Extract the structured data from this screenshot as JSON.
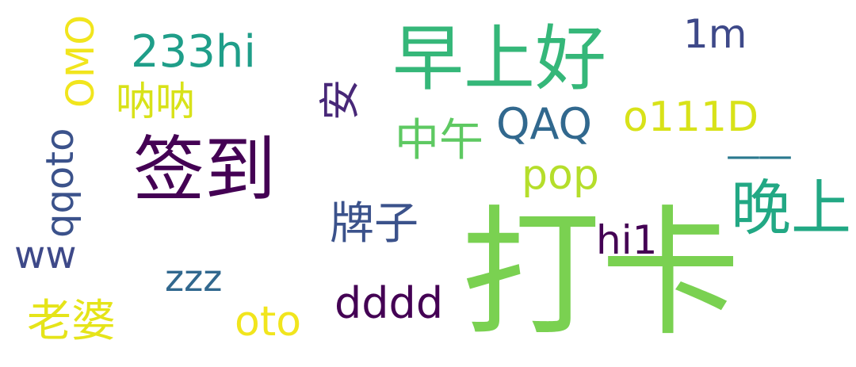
{
  "canvas": {
    "background": "#ffffff"
  },
  "words": [
    {
      "id": "daka",
      "text": "打卡",
      "color": "#7ad151",
      "vertical": false
    },
    {
      "id": "qiandao",
      "text": "签到",
      "color": "#440154",
      "vertical": false
    },
    {
      "id": "zaoshanghao",
      "text": "早上好",
      "color": "#35b779",
      "vertical": false
    },
    {
      "id": "wanshang",
      "text": "晚上",
      "color": "#22a884",
      "vertical": false
    },
    {
      "id": "233hi",
      "text": "233hi",
      "color": "#1f9e89",
      "vertical": false
    },
    {
      "id": "nana",
      "text": "呐呐",
      "color": "#d8e219",
      "vertical": false
    },
    {
      "id": "omo",
      "text": "OMO",
      "color": "#f1e51d",
      "vertical": true
    },
    {
      "id": "qqoto",
      "text": "qqoto",
      "color": "#3b528b",
      "vertical": true
    },
    {
      "id": "an",
      "text": "安",
      "color": "#482878",
      "vertical": true
    },
    {
      "id": "1m",
      "text": "1m",
      "color": "#3e4989",
      "vertical": false
    },
    {
      "id": "qaq",
      "text": "QAQ",
      "color": "#31688e",
      "vertical": false
    },
    {
      "id": "o111d",
      "text": "o111D",
      "color": "#d8e219",
      "vertical": false
    },
    {
      "id": "zhongwu",
      "text": "中午",
      "color": "#5ec962",
      "vertical": false
    },
    {
      "id": "dash",
      "text": "——",
      "color": "#2a788e",
      "vertical": false
    },
    {
      "id": "pop",
      "text": "pop",
      "color": "#b5de2b",
      "vertical": false
    },
    {
      "id": "paizi",
      "text": "牌子",
      "color": "#3b528b",
      "vertical": false
    },
    {
      "id": "hi1",
      "text": "hi1",
      "color": "#440154",
      "vertical": false
    },
    {
      "id": "ww",
      "text": "ww",
      "color": "#3e4989",
      "vertical": false
    },
    {
      "id": "zzz",
      "text": "zzz",
      "color": "#31688e",
      "vertical": false
    },
    {
      "id": "dddd",
      "text": "dddd",
      "color": "#440154",
      "vertical": false
    },
    {
      "id": "laopo",
      "text": "老婆",
      "color": "#e5e419",
      "vertical": false
    },
    {
      "id": "oto",
      "text": "oto",
      "color": "#f1e51d",
      "vertical": false
    }
  ]
}
